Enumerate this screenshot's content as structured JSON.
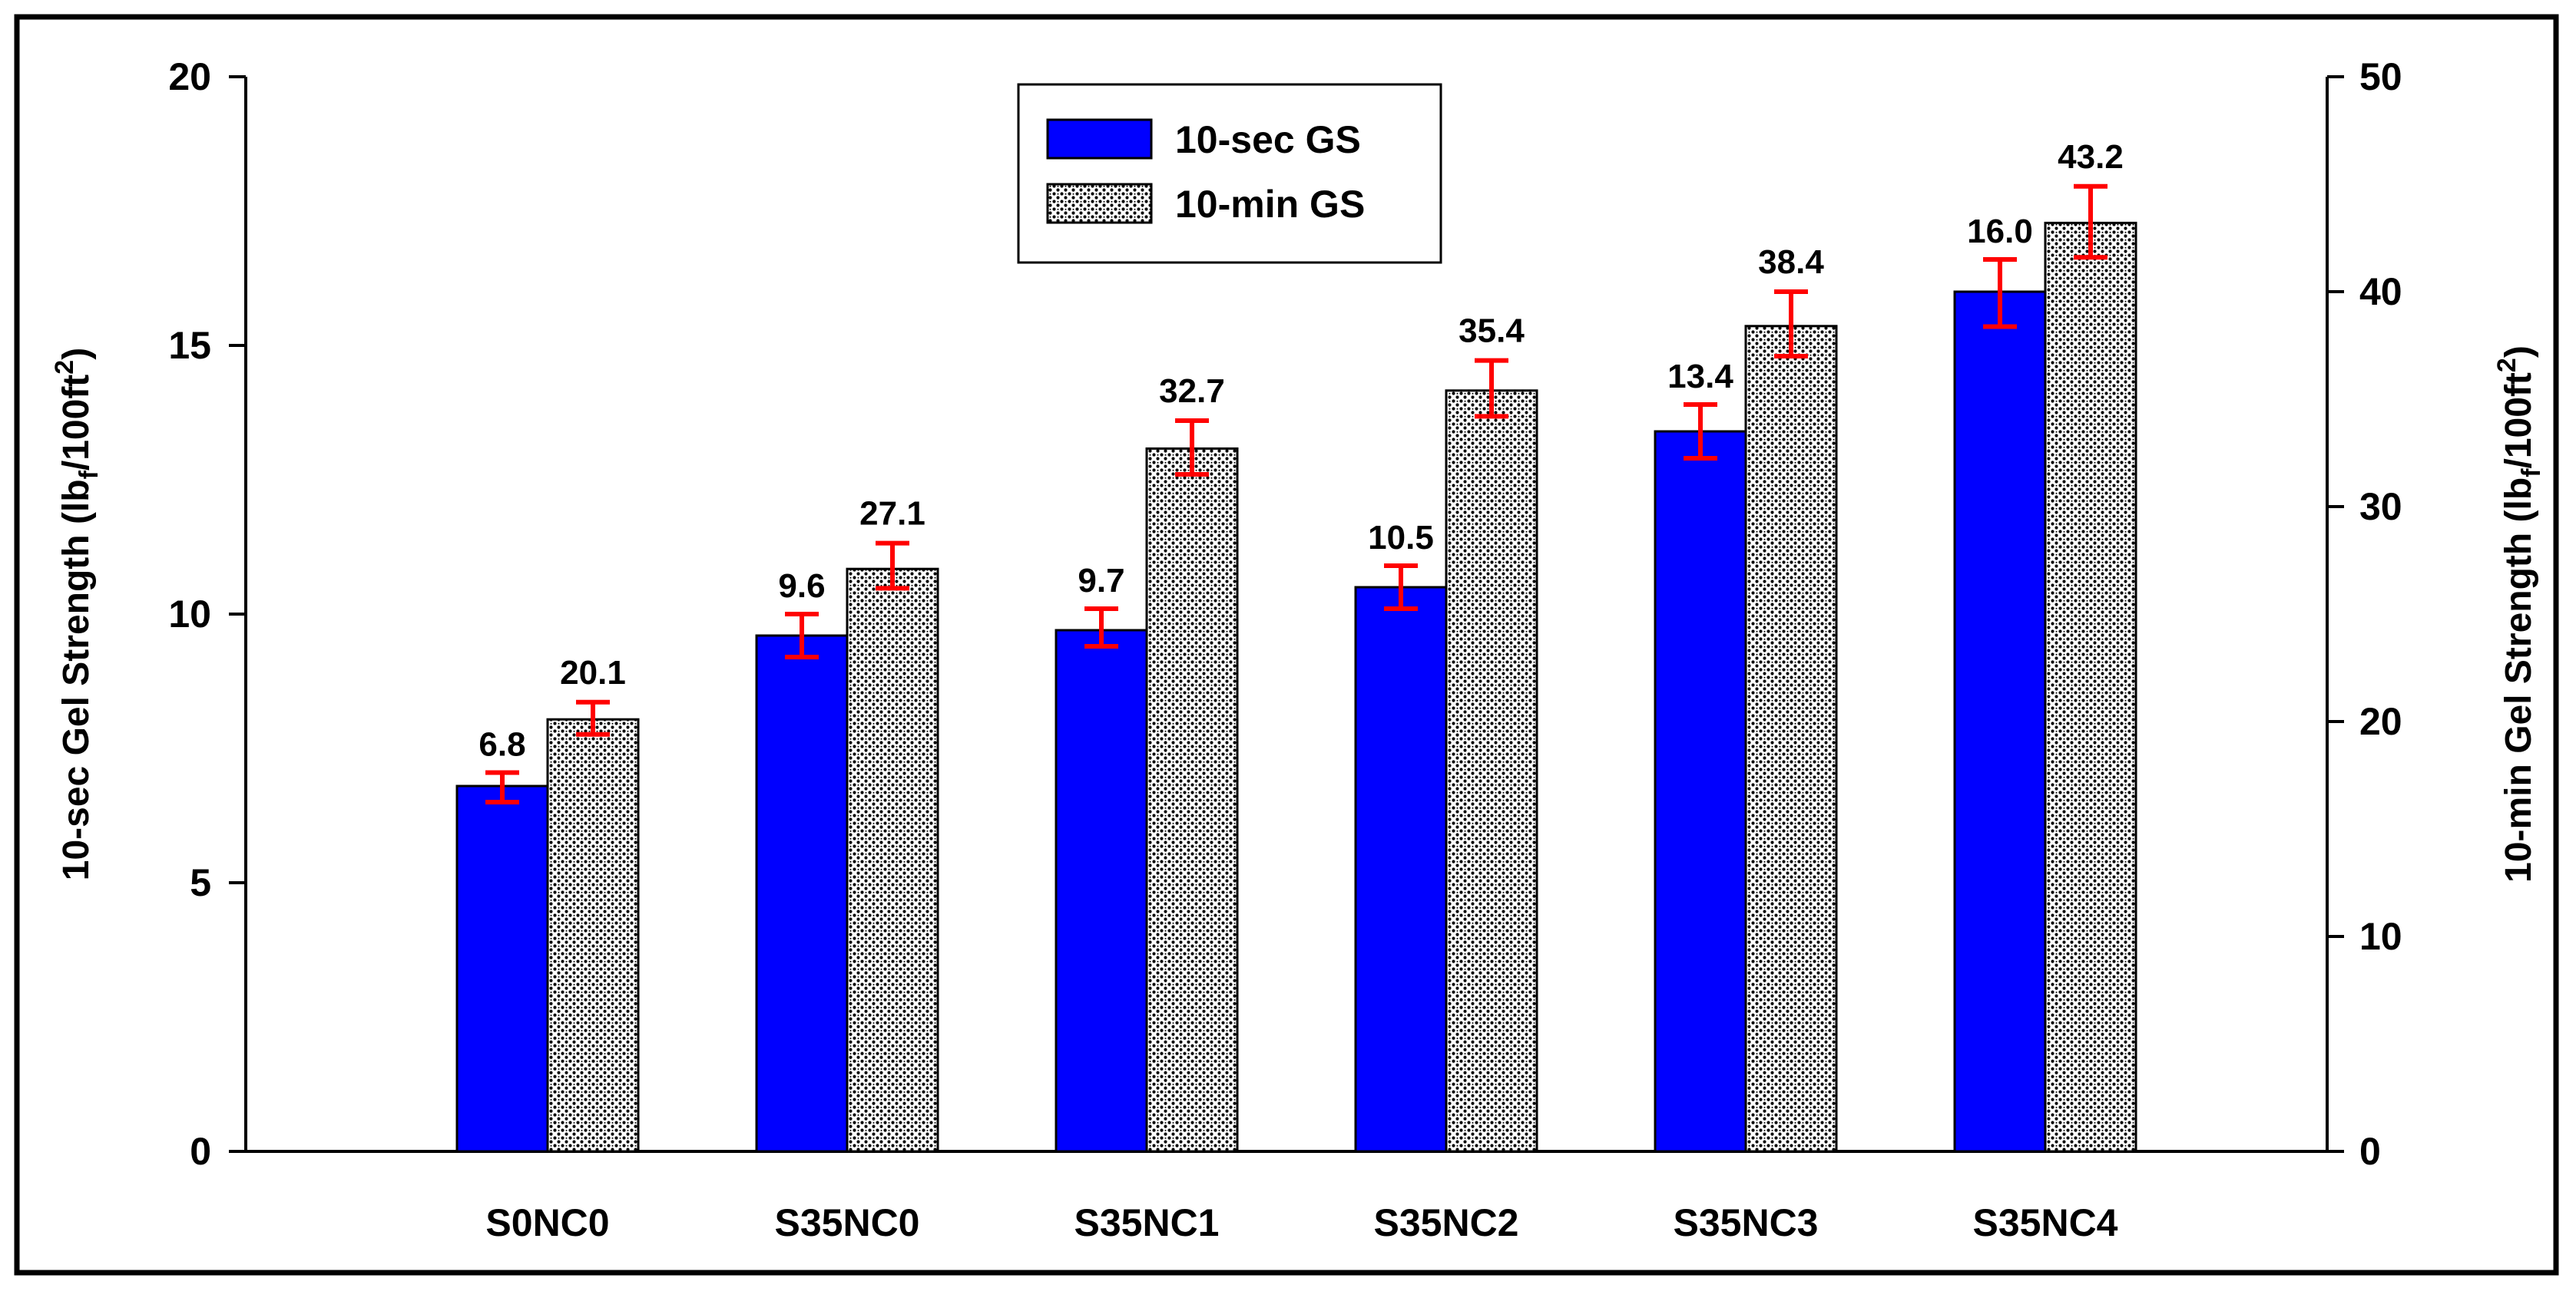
{
  "chart_data": {
    "type": "bar",
    "title": "",
    "categories": [
      "S0NC0",
      "S35NC0",
      "S35NC1",
      "S35NC2",
      "S35NC3",
      "S35NC4"
    ],
    "series": [
      {
        "name": "10-sec GS",
        "axis": "left",
        "values": [
          6.8,
          9.6,
          9.7,
          10.5,
          13.4,
          16.0
        ],
        "labels": [
          "6.8",
          "9.6",
          "9.7",
          "10.5",
          "13.4",
          "16.0"
        ],
        "error_low": [
          6.5,
          9.2,
          9.4,
          10.1,
          12.9,
          15.35
        ],
        "error_high": [
          7.05,
          10.0,
          10.1,
          10.9,
          13.9,
          16.6
        ],
        "color": "#0000ff",
        "fill": "solid"
      },
      {
        "name": "10-min GS",
        "axis": "right",
        "values": [
          20.1,
          27.1,
          32.7,
          35.4,
          38.4,
          43.2
        ],
        "labels": [
          "20.1",
          "27.1",
          "32.7",
          "35.4",
          "38.4",
          "43.2"
        ],
        "error_low": [
          19.4,
          26.2,
          31.5,
          34.2,
          37.0,
          41.6
        ],
        "error_high": [
          20.9,
          28.3,
          34.0,
          36.8,
          40.0,
          44.9
        ],
        "color": "#000000",
        "fill": "dotted"
      }
    ],
    "y_left": {
      "label_main": "10-sec Gel Strength (lb",
      "label_sub": "f",
      "label_mid": "/100ft",
      "label_sup": "2",
      "label_end": ")",
      "ylim": [
        0,
        20
      ],
      "ticks": [
        "0",
        "5",
        "10",
        "15",
        "20"
      ]
    },
    "y_right": {
      "label_main": "10-min Gel Strength (lb",
      "label_sub": "f",
      "label_mid": "/100ft",
      "label_sup": "2",
      "label_end": ")",
      "ylim": [
        0,
        50
      ],
      "ticks": [
        "0",
        "10",
        "20",
        "30",
        "40",
        "50"
      ]
    },
    "error_bar_color": "#ff0000",
    "legend_position": "top-center",
    "grid": false
  }
}
